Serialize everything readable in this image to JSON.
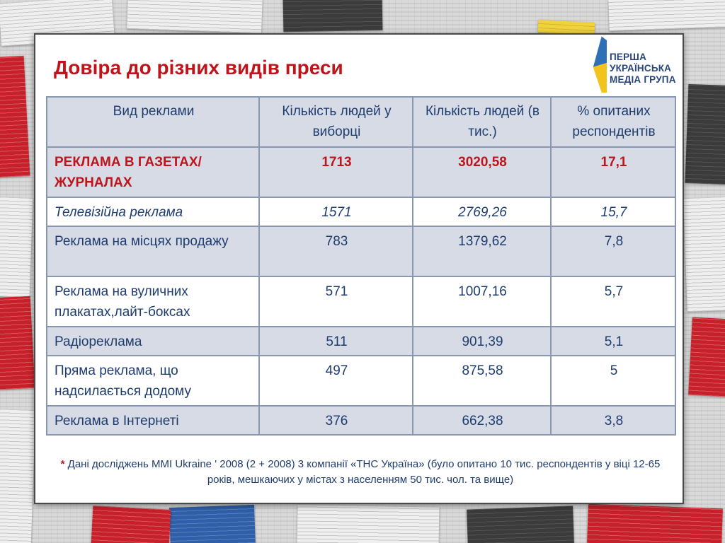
{
  "title": "Довіра до різних видів преси",
  "logo": {
    "lines": [
      "ПЕРША",
      "УКРАЇНСЬКА",
      "МЕДІА ГРУПА"
    ],
    "colors": {
      "blue": "#2f6fb5",
      "yellow": "#f2c31c",
      "text": "#27457b"
    }
  },
  "table": {
    "headers": [
      "Вид реклами",
      "Кількість людей у виборці",
      "Кількість людей  (в тис.)",
      "%  опитаних респондентів"
    ],
    "rows": [
      {
        "type": "Реклама в газетах/журналах",
        "count": "1713",
        "thousands": "3020,58",
        "percent": "17,1"
      },
      {
        "type": "Телевізійна реклама",
        "count": "1571",
        "thousands": "2769,26",
        "percent": "15,7"
      },
      {
        "type": "Реклама на місцях продажу",
        "count": "783",
        "thousands": "1379,62",
        "percent": "7,8"
      },
      {
        "type": "Реклама на вуличних плакатах,лайт-боксах",
        "count": "571",
        "thousands": "1007,16",
        "percent": "5,7"
      },
      {
        "type": "Радіореклама",
        "count": "511",
        "thousands": "901,39",
        "percent": "5,1"
      },
      {
        "type": "Пряма реклама, що надсилається додому",
        "count": "497",
        "thousands": "875,58",
        "percent": "5"
      },
      {
        "type": "Реклама в Інтернеті",
        "count": "376",
        "thousands": "662,38",
        "percent": "3,8"
      }
    ]
  },
  "footnote": {
    "marker": "*",
    "text": "Дані досліджень MMI Ukraine ' 2008 (2 + 2008) 3 компанії «ТНС Україна» (було опитано 10 тис. респондентів у віці 12-65 років, мешкаючих у містах з населенням 50 тис. чол. та вище)"
  },
  "colors": {
    "title": "#c0141a",
    "table_text": "#1f3c6e",
    "shade": "#d6dbe6",
    "border": "#8a97b0"
  }
}
